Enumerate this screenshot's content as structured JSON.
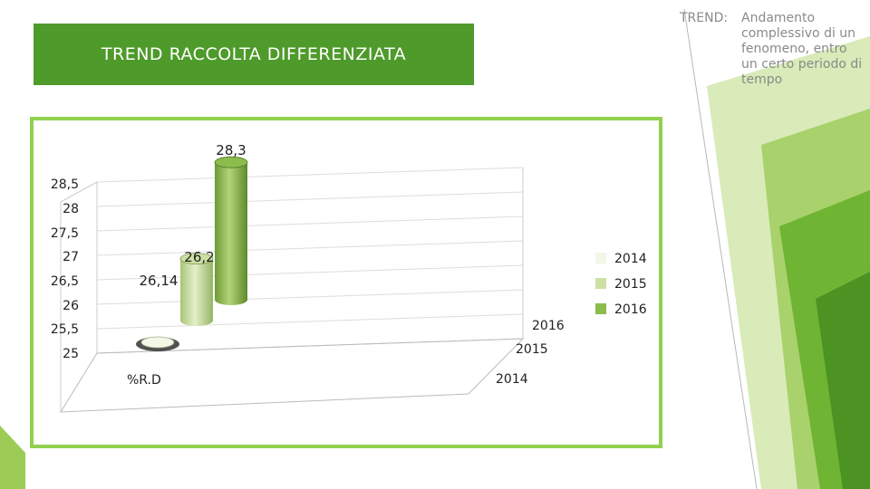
{
  "title": "TREND RACCOLTA DIFFERENZIATA",
  "note": {
    "term": "TREND:",
    "definition": "Andamento complessivo di un fenomeno, entro un certo periodo di tempo"
  },
  "colors": {
    "title_bg": "#4e9a2a",
    "frame": "#92d050",
    "series_2014": "#f2f7e6",
    "series_2015": "#cde0a4",
    "series_2016": "#8cbc4c"
  },
  "chart_data": {
    "type": "bar",
    "style": "3d-cylinder",
    "categories": [
      "%R.D"
    ],
    "depth_labels": [
      "2016",
      "2015",
      "2014"
    ],
    "series": [
      {
        "name": "2014",
        "values": [
          25
        ],
        "data_label": ""
      },
      {
        "name": "2015",
        "values": [
          26.14
        ],
        "data_label": "26,14"
      },
      {
        "name": "2016",
        "values": [
          28.3
        ],
        "data_label": "28,3"
      }
    ],
    "extra_data_label": "26,2",
    "y_ticks": [
      "28,5",
      "28",
      "27,5",
      "27",
      "26,5",
      "26",
      "25,5",
      "25"
    ],
    "ylim": [
      25,
      28.5
    ],
    "legend_position": "right",
    "grid": true
  }
}
